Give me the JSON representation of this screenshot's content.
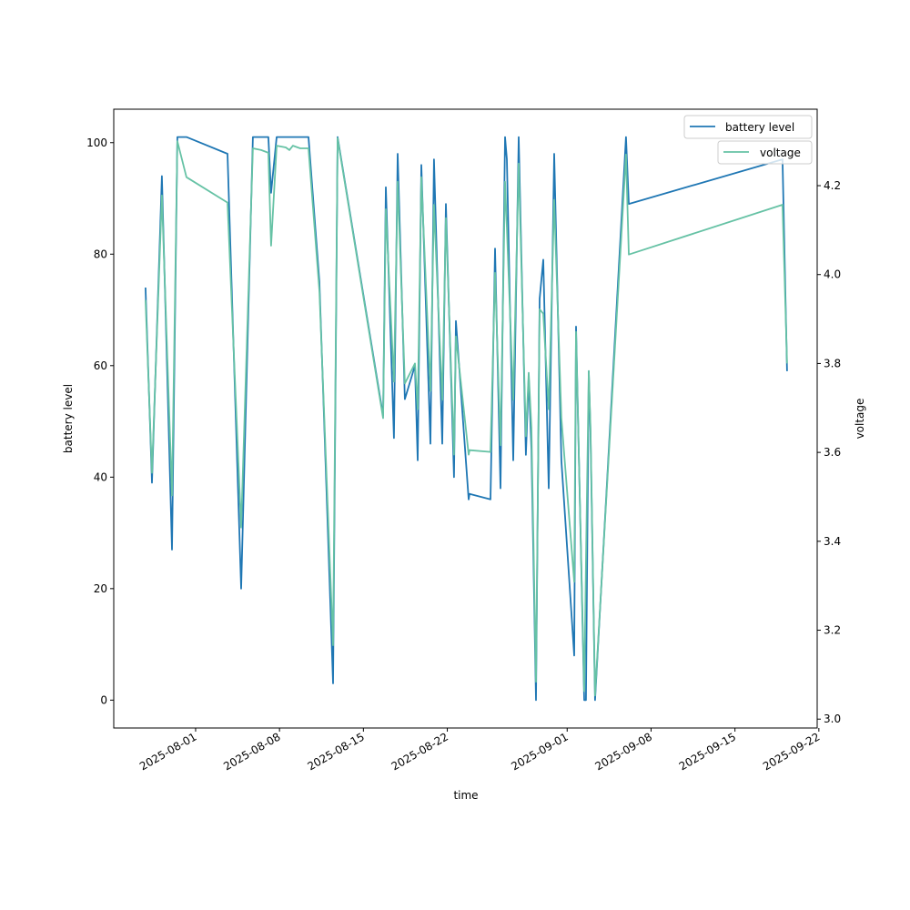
{
  "chart_data": {
    "type": "line",
    "xlabel": "time",
    "ylabel": "battery level",
    "y2label": "voltage",
    "x_unit": "days since 2025-08-01",
    "xlim": [
      -6.83,
      51.86
    ],
    "ylim": [
      -5,
      106
    ],
    "y2lim": [
      2.98,
      4.372
    ],
    "xticks": [
      {
        "value": 0,
        "label": "2025-08-01"
      },
      {
        "value": 7,
        "label": "2025-08-08"
      },
      {
        "value": 14,
        "label": "2025-08-15"
      },
      {
        "value": 21,
        "label": "2025-08-22"
      },
      {
        "value": 31,
        "label": "2025-09-01"
      },
      {
        "value": 38,
        "label": "2025-09-08"
      },
      {
        "value": 45,
        "label": "2025-09-15"
      },
      {
        "value": 52,
        "label": "2025-09-22"
      }
    ],
    "yticks": [
      0,
      20,
      40,
      60,
      80,
      100
    ],
    "y2ticks": [
      3.0,
      3.2,
      3.4,
      3.6,
      3.8,
      4.0,
      4.2
    ],
    "y2tick_labels": [
      "3.0",
      "3.2",
      "3.4",
      "3.6",
      "3.8",
      "4.0",
      "4.2"
    ],
    "x": [
      -4.18,
      -3.64,
      -2.81,
      -1.97,
      -1.52,
      -0.76,
      2.66,
      3.8,
      4.78,
      5.47,
      6.07,
      6.3,
      6.76,
      7.52,
      7.82,
      8.12,
      8.73,
      9.42,
      10.33,
      11.47,
      11.85,
      15.64,
      15.87,
      16.55,
      16.86,
      17.46,
      18.3,
      18.53,
      18.83,
      19.59,
      19.89,
      20.58,
      20.88,
      21.56,
      21.72,
      22.78,
      22.86,
      24.6,
      24.98,
      25.44,
      25.82,
      25.97,
      26.5,
      26.96,
      27.56,
      27.79,
      28.02,
      28.4,
      28.7,
      29.01,
      29.46,
      29.92,
      30.52,
      31.59,
      31.74,
      32.42,
      32.57,
      32.8,
      32.95,
      33.33,
      35.91,
      36.14,
      48.97,
      49.35
    ],
    "series": [
      {
        "name": "battery level",
        "axis": "left",
        "color": "#1f77b4",
        "values": [
          74,
          39,
          94,
          27,
          101,
          101,
          98,
          20,
          101,
          101,
          101,
          91,
          101,
          101,
          101,
          101,
          101,
          101,
          75,
          3,
          101,
          51,
          92,
          47,
          98,
          54,
          60,
          43,
          96,
          46,
          97,
          46,
          89,
          40,
          68,
          36,
          37,
          36,
          81,
          38,
          101,
          97,
          43,
          101,
          44,
          58,
          45,
          0,
          72,
          79,
          38,
          98,
          43,
          8,
          67,
          0,
          0,
          59,
          48,
          0,
          101,
          89,
          97,
          59
        ]
      },
      {
        "name": "voltage",
        "axis": "right",
        "color": "#66c2a5",
        "values": [
          3.943,
          3.554,
          4.178,
          3.503,
          4.3,
          4.219,
          4.162,
          3.431,
          4.284,
          4.28,
          4.274,
          4.065,
          4.29,
          4.286,
          4.28,
          4.29,
          4.284,
          4.284,
          3.963,
          3.166,
          4.307,
          3.677,
          4.147,
          3.759,
          4.209,
          3.755,
          3.8,
          3.697,
          4.219,
          3.738,
          4.157,
          3.718,
          4.127,
          3.595,
          3.861,
          3.595,
          3.605,
          3.601,
          4.004,
          3.616,
          4.209,
          4.106,
          3.718,
          4.25,
          3.636,
          3.779,
          3.656,
          3.084,
          3.922,
          3.912,
          3.697,
          4.168,
          3.677,
          3.309,
          3.871,
          3.063,
          3.35,
          3.783,
          3.656,
          3.053,
          4.27,
          4.045,
          4.157,
          3.8
        ]
      }
    ],
    "legend": [
      {
        "label": "battery level"
      },
      {
        "label": "voltage"
      }
    ],
    "legend_placement": "top-right",
    "grid": false
  }
}
